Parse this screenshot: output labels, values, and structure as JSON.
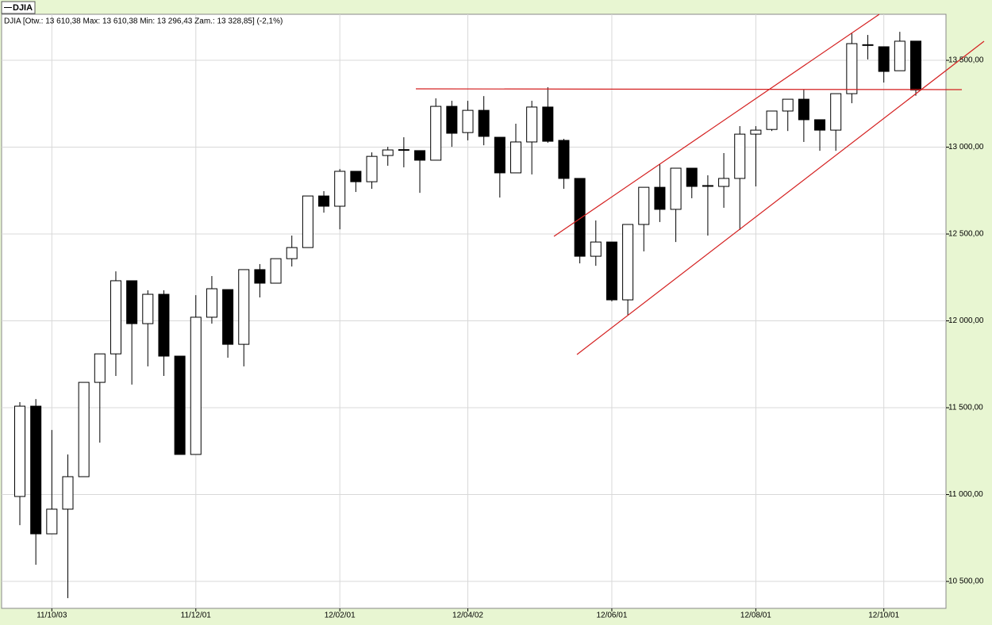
{
  "chart_data": {
    "type": "candlestick",
    "info": "DJIA [Otw.: 13 610,38  Max: 13 610,38  Min: 13 296,43  Zam.: 13 328,85] (-2,1%)",
    "categories": [
      null,
      null,
      "11/10/03",
      null,
      null,
      null,
      null,
      null,
      null,
      null,
      null,
      "11/12/01",
      null,
      null,
      null,
      null,
      null,
      null,
      null,
      null,
      "12/02/01",
      null,
      null,
      null,
      null,
      null,
      null,
      null,
      "12/04/02",
      null,
      null,
      null,
      null,
      null,
      null,
      null,
      null,
      "12/06/01",
      null,
      null,
      null,
      null,
      null,
      null,
      null,
      null,
      "12/08/01",
      null,
      null,
      null,
      null,
      null,
      null,
      null,
      "12/10/01",
      null,
      null
    ],
    "series": [
      {
        "name": "DJIA",
        "up_color": "#ffffff",
        "down_color": "#000000",
        "open": [
          10989,
          11509,
          10774,
          10916,
          11103,
          11646,
          11810,
          12231,
          11984,
          12153,
          11797,
          11231,
          12021,
          12180,
          11865,
          12295,
          12217,
          12358,
          12422,
          12719,
          12660,
          12861,
          12801,
          12952,
          12984,
          12980,
          12925,
          13235,
          13084,
          13212,
          13057,
          12852,
          13030,
          13231,
          13039,
          12820,
          12372,
          12454,
          12121,
          12555,
          12769,
          12642,
          12879,
          12778,
          12774,
          12820,
          13075,
          13102,
          13208,
          13276,
          13158,
          13098,
          13308,
          13587,
          13578,
          13440,
          13610.38
        ],
        "high": [
          11532,
          11550,
          11372,
          11231,
          11646,
          11810,
          12285,
          12231,
          12176,
          12176,
          11797,
          12148,
          12258,
          12180,
          12295,
          12327,
          12358,
          12491,
          12719,
          12747,
          12874,
          12861,
          12970,
          13002,
          13057,
          12980,
          13281,
          13267,
          13267,
          13294,
          13057,
          13135,
          13267,
          13345,
          13048,
          12820,
          12578,
          12454,
          12555,
          12769,
          12902,
          12879,
          12879,
          12838,
          12966,
          13121,
          13121,
          13208,
          13276,
          13331,
          13158,
          13308,
          13655,
          13646,
          13578,
          13664,
          13610.38
        ],
        "low": [
          10824,
          10596,
          10774,
          10404,
          11103,
          11299,
          11683,
          11633,
          11738,
          11683,
          11231,
          11231,
          11984,
          11788,
          11738,
          12135,
          12217,
          12313,
          12422,
          12623,
          12527,
          12742,
          12760,
          12893,
          12884,
          12737,
          12925,
          13002,
          13039,
          13011,
          12710,
          12852,
          12843,
          13025,
          12760,
          12331,
          12317,
          12112,
          12034,
          12400,
          12569,
          12454,
          12706,
          12491,
          12651,
          12523,
          12774,
          13093,
          13093,
          13030,
          12979,
          12979,
          13253,
          13505,
          13372,
          13440,
          13296.43
        ],
        "close": [
          11509,
          10774,
          10916,
          11103,
          11646,
          11810,
          12231,
          11984,
          12153,
          11797,
          11231,
          12021,
          12185,
          11865,
          12295,
          12217,
          12358,
          12422,
          12719,
          12660,
          12861,
          12801,
          12947,
          12984,
          12986,
          12925,
          13235,
          13080,
          13212,
          13062,
          12852,
          13030,
          13231,
          13034,
          12820,
          12372,
          12454,
          12121,
          12555,
          12769,
          12642,
          12879,
          12774,
          12779,
          12820,
          13075,
          13098,
          13208,
          13276,
          13158,
          13098,
          13308,
          13596,
          13590,
          13436,
          13610,
          13328.85
        ]
      }
    ],
    "ylim": [
      10345,
      13765
    ],
    "yticks": [
      {
        "value": 10500,
        "label": "10 500,00"
      },
      {
        "value": 11000,
        "label": "11 000,00"
      },
      {
        "value": 11500,
        "label": "11 500,00"
      },
      {
        "value": 12000,
        "label": "12 000,00"
      },
      {
        "value": 12500,
        "label": "12 500,00"
      },
      {
        "value": 13000,
        "label": "13 000,00"
      },
      {
        "value": 13500,
        "label": "13 500,00"
      }
    ],
    "grid": true,
    "annotation_color": "#d42020"
  }
}
